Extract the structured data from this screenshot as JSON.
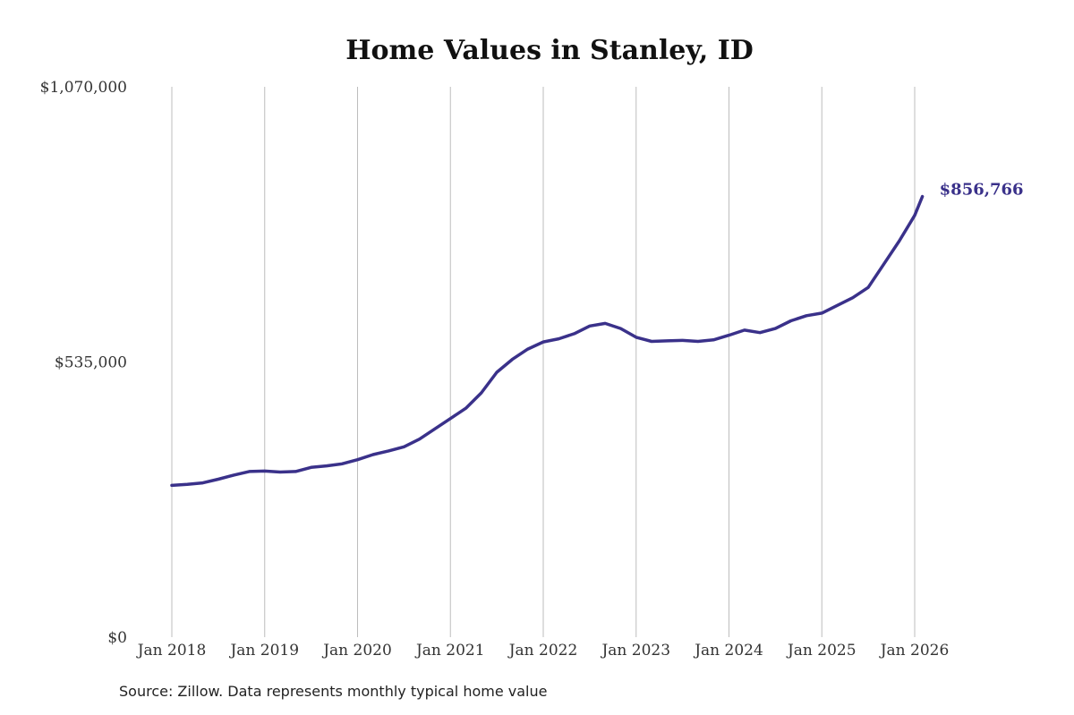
{
  "chart_data": {
    "type": "line",
    "title": "Home Values in Stanley, ID",
    "xlabel": "",
    "ylabel": "",
    "ylim": [
      0,
      1070000
    ],
    "y_ticks": [
      0,
      535000,
      1070000
    ],
    "y_tick_labels": [
      "$0",
      "$535,000",
      "$1,070,000"
    ],
    "x_ticks": [
      "2018-01",
      "2019-01",
      "2020-01",
      "2021-01",
      "2022-01",
      "2023-01",
      "2024-01",
      "2025-01",
      "2026-01"
    ],
    "x_tick_labels": [
      "Jan 2018",
      "Jan 2019",
      "Jan 2020",
      "Jan 2021",
      "Jan 2022",
      "Jan 2023",
      "Jan 2024",
      "Jan 2025",
      "Jan 2026"
    ],
    "grid": "vertical",
    "line_color": "#3a318a",
    "end_label": "$856,766",
    "x": [
      "2018-01",
      "2018-03",
      "2018-05",
      "2018-07",
      "2018-09",
      "2018-11",
      "2019-01",
      "2019-03",
      "2019-05",
      "2019-07",
      "2019-09",
      "2019-11",
      "2020-01",
      "2020-03",
      "2020-05",
      "2020-07",
      "2020-09",
      "2020-11",
      "2021-01",
      "2021-03",
      "2021-05",
      "2021-07",
      "2021-09",
      "2021-11",
      "2022-01",
      "2022-03",
      "2022-05",
      "2022-07",
      "2022-09",
      "2022-11",
      "2023-01",
      "2023-03",
      "2023-05",
      "2023-07",
      "2023-09",
      "2023-11",
      "2024-01",
      "2024-03",
      "2024-05",
      "2024-07",
      "2024-09",
      "2024-11",
      "2025-01",
      "2025-03",
      "2025-05",
      "2025-07",
      "2025-09",
      "2025-11",
      "2026-01",
      "2026-02"
    ],
    "series": [
      {
        "values": [
          295000,
          297000,
          300000,
          307000,
          315000,
          322000,
          323000,
          321000,
          322000,
          330000,
          333000,
          337000,
          345000,
          355000,
          362000,
          370000,
          385000,
          405000,
          425000,
          445000,
          475000,
          515000,
          540000,
          560000,
          574000,
          580000,
          590000,
          605000,
          610000,
          600000,
          583000,
          575000,
          576000,
          577000,
          575000,
          578000,
          587000,
          597000,
          592000,
          600000,
          615000,
          625000,
          630000,
          645000,
          660000,
          680000,
          725000,
          770000,
          820000,
          856766
        ]
      }
    ]
  },
  "source": "Source: Zillow. Data represents monthly typical home value"
}
